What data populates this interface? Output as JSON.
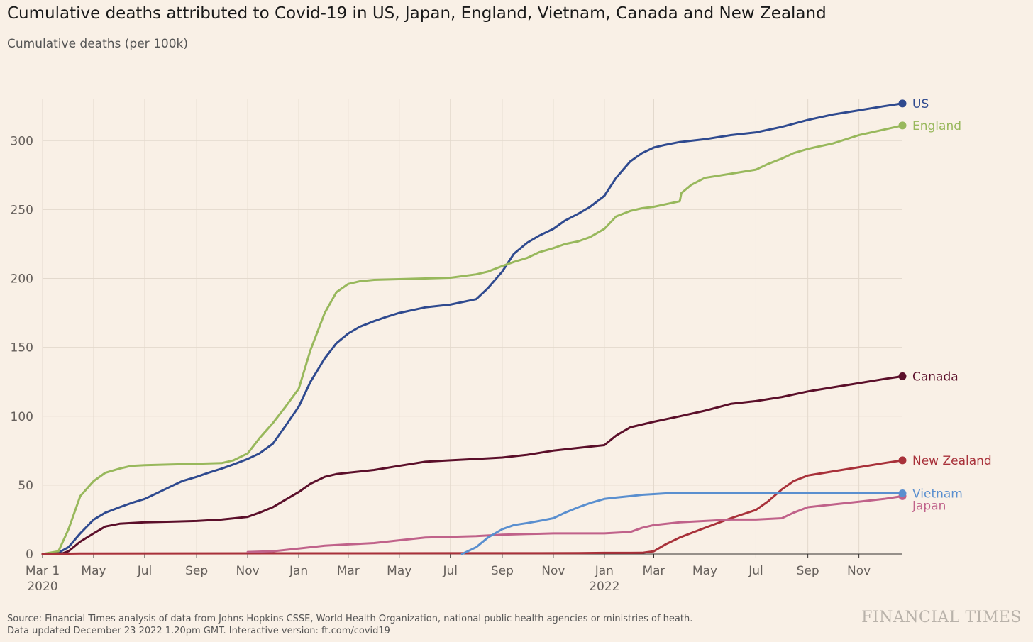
{
  "title": "Cumulative deaths attributed to Covid-19 in US, Japan, England, Vietnam, Canada and New Zealand",
  "subtitle": "Cumulative deaths (per 100k)",
  "source_line1": "Source: Financial Times analysis of data from Johns Hopkins CSSE, World Health Organization, national public health agencies or ministries of heath.",
  "source_line2": "Data updated December 23 2022 1.20pm GMT. Interactive version: ft.com/covid19",
  "brand": "FINANCIAL TIMES",
  "chart_data": {
    "type": "line",
    "title": "Cumulative deaths attributed to Covid-19 in US, Japan, England, Vietnam, Canada and New Zealand",
    "ylabel": "Cumulative deaths (per 100k)",
    "xlabel": "",
    "ylim": [
      0,
      330
    ],
    "xlim": [
      "2020-03-01",
      "2022-12-23"
    ],
    "grid": true,
    "legend": "end-of-line labels",
    "y_ticks": [
      0,
      50,
      100,
      150,
      200,
      250,
      300
    ],
    "x_ticks": [
      {
        "date": "2020-03-01",
        "label": "Mar 1",
        "sublabel": "2020"
      },
      {
        "date": "2020-05-01",
        "label": "May"
      },
      {
        "date": "2020-07-01",
        "label": "Jul"
      },
      {
        "date": "2020-09-01",
        "label": "Sep"
      },
      {
        "date": "2020-11-01",
        "label": "Nov"
      },
      {
        "date": "2021-01-01",
        "label": "Jan"
      },
      {
        "date": "2021-03-01",
        "label": "Mar"
      },
      {
        "date": "2021-05-01",
        "label": "May"
      },
      {
        "date": "2021-07-01",
        "label": "Jul"
      },
      {
        "date": "2021-09-01",
        "label": "Sep"
      },
      {
        "date": "2021-11-01",
        "label": "Nov"
      },
      {
        "date": "2022-01-01",
        "label": "Jan",
        "sublabel": "2022"
      },
      {
        "date": "2022-03-01",
        "label": "Mar"
      },
      {
        "date": "2022-05-01",
        "label": "May"
      },
      {
        "date": "2022-07-01",
        "label": "Jul"
      },
      {
        "date": "2022-09-01",
        "label": "Sep"
      },
      {
        "date": "2022-11-01",
        "label": "Nov"
      }
    ],
    "series": [
      {
        "name": "US",
        "color": "#2f4a8f",
        "points": [
          [
            "2020-03-01",
            0
          ],
          [
            "2020-03-20",
            1
          ],
          [
            "2020-04-01",
            5
          ],
          [
            "2020-04-15",
            15
          ],
          [
            "2020-05-01",
            25
          ],
          [
            "2020-05-15",
            30
          ],
          [
            "2020-06-01",
            34
          ],
          [
            "2020-06-15",
            37
          ],
          [
            "2020-07-01",
            40
          ],
          [
            "2020-07-15",
            44
          ],
          [
            "2020-08-01",
            49
          ],
          [
            "2020-08-15",
            53
          ],
          [
            "2020-09-01",
            56
          ],
          [
            "2020-09-15",
            59
          ],
          [
            "2020-10-01",
            62
          ],
          [
            "2020-10-15",
            65
          ],
          [
            "2020-11-01",
            69
          ],
          [
            "2020-11-15",
            73
          ],
          [
            "2020-12-01",
            80
          ],
          [
            "2020-12-15",
            92
          ],
          [
            "2021-01-01",
            107
          ],
          [
            "2021-01-15",
            125
          ],
          [
            "2021-02-01",
            142
          ],
          [
            "2021-02-15",
            153
          ],
          [
            "2021-03-01",
            160
          ],
          [
            "2021-03-15",
            165
          ],
          [
            "2021-04-01",
            169
          ],
          [
            "2021-04-15",
            172
          ],
          [
            "2021-05-01",
            175
          ],
          [
            "2021-06-01",
            179
          ],
          [
            "2021-07-01",
            181
          ],
          [
            "2021-08-01",
            185
          ],
          [
            "2021-08-15",
            193
          ],
          [
            "2021-09-01",
            205
          ],
          [
            "2021-09-15",
            218
          ],
          [
            "2021-10-01",
            226
          ],
          [
            "2021-10-15",
            231
          ],
          [
            "2021-11-01",
            236
          ],
          [
            "2021-11-15",
            242
          ],
          [
            "2021-12-01",
            247
          ],
          [
            "2021-12-15",
            252
          ],
          [
            "2022-01-01",
            260
          ],
          [
            "2022-01-15",
            273
          ],
          [
            "2022-02-01",
            285
          ],
          [
            "2022-02-15",
            291
          ],
          [
            "2022-03-01",
            295
          ],
          [
            "2022-03-15",
            297
          ],
          [
            "2022-04-01",
            299
          ],
          [
            "2022-05-01",
            301
          ],
          [
            "2022-06-01",
            304
          ],
          [
            "2022-07-01",
            306
          ],
          [
            "2022-08-01",
            310
          ],
          [
            "2022-09-01",
            315
          ],
          [
            "2022-10-01",
            319
          ],
          [
            "2022-11-01",
            322
          ],
          [
            "2022-12-01",
            325
          ],
          [
            "2022-12-23",
            327
          ]
        ]
      },
      {
        "name": "England",
        "color": "#98b85c",
        "points": [
          [
            "2020-03-01",
            0
          ],
          [
            "2020-03-20",
            2
          ],
          [
            "2020-04-01",
            18
          ],
          [
            "2020-04-15",
            42
          ],
          [
            "2020-05-01",
            53
          ],
          [
            "2020-05-15",
            59
          ],
          [
            "2020-06-01",
            62
          ],
          [
            "2020-06-15",
            64
          ],
          [
            "2020-07-01",
            64.5
          ],
          [
            "2020-08-01",
            65
          ],
          [
            "2020-09-01",
            65.5
          ],
          [
            "2020-10-01",
            66
          ],
          [
            "2020-10-15",
            68
          ],
          [
            "2020-11-01",
            73
          ],
          [
            "2020-11-15",
            84
          ],
          [
            "2020-12-01",
            95
          ],
          [
            "2020-12-15",
            106
          ],
          [
            "2021-01-01",
            120
          ],
          [
            "2021-01-15",
            148
          ],
          [
            "2021-02-01",
            175
          ],
          [
            "2021-02-15",
            190
          ],
          [
            "2021-03-01",
            196
          ],
          [
            "2021-03-15",
            198
          ],
          [
            "2021-04-01",
            199
          ],
          [
            "2021-05-01",
            199.5
          ],
          [
            "2021-06-01",
            200
          ],
          [
            "2021-07-01",
            200.5
          ],
          [
            "2021-08-01",
            203
          ],
          [
            "2021-08-15",
            205
          ],
          [
            "2021-09-01",
            209
          ],
          [
            "2021-09-15",
            212
          ],
          [
            "2021-10-01",
            215
          ],
          [
            "2021-10-15",
            219
          ],
          [
            "2021-11-01",
            222
          ],
          [
            "2021-11-15",
            225
          ],
          [
            "2021-12-01",
            227
          ],
          [
            "2021-12-15",
            230
          ],
          [
            "2022-01-01",
            236
          ],
          [
            "2022-01-15",
            245
          ],
          [
            "2022-02-01",
            249
          ],
          [
            "2022-02-15",
            251
          ],
          [
            "2022-03-01",
            252
          ],
          [
            "2022-04-01",
            256
          ],
          [
            "2022-04-03",
            262
          ],
          [
            "2022-04-15",
            268
          ],
          [
            "2022-05-01",
            273
          ],
          [
            "2022-06-01",
            276
          ],
          [
            "2022-07-01",
            279
          ],
          [
            "2022-07-15",
            283
          ],
          [
            "2022-08-01",
            287
          ],
          [
            "2022-08-15",
            291
          ],
          [
            "2022-09-01",
            294
          ],
          [
            "2022-10-01",
            298
          ],
          [
            "2022-11-01",
            304
          ],
          [
            "2022-12-01",
            308
          ],
          [
            "2022-12-23",
            311
          ]
        ]
      },
      {
        "name": "Canada",
        "color": "#5b0f2a",
        "points": [
          [
            "2020-03-01",
            0
          ],
          [
            "2020-03-25",
            0.5
          ],
          [
            "2020-04-01",
            2
          ],
          [
            "2020-04-15",
            9
          ],
          [
            "2020-05-01",
            15
          ],
          [
            "2020-05-15",
            20
          ],
          [
            "2020-06-01",
            22
          ],
          [
            "2020-07-01",
            23
          ],
          [
            "2020-08-01",
            23.5
          ],
          [
            "2020-09-01",
            24
          ],
          [
            "2020-10-01",
            25
          ],
          [
            "2020-11-01",
            27
          ],
          [
            "2020-11-15",
            30
          ],
          [
            "2020-12-01",
            34
          ],
          [
            "2020-12-15",
            39
          ],
          [
            "2021-01-01",
            45
          ],
          [
            "2021-01-15",
            51
          ],
          [
            "2021-02-01",
            56
          ],
          [
            "2021-02-15",
            58
          ],
          [
            "2021-03-01",
            59
          ],
          [
            "2021-04-01",
            61
          ],
          [
            "2021-05-01",
            64
          ],
          [
            "2021-06-01",
            67
          ],
          [
            "2021-07-01",
            68
          ],
          [
            "2021-08-01",
            69
          ],
          [
            "2021-09-01",
            70
          ],
          [
            "2021-10-01",
            72
          ],
          [
            "2021-11-01",
            75
          ],
          [
            "2021-12-01",
            77
          ],
          [
            "2022-01-01",
            79
          ],
          [
            "2022-01-15",
            86
          ],
          [
            "2022-02-01",
            92
          ],
          [
            "2022-03-01",
            96
          ],
          [
            "2022-04-01",
            100
          ],
          [
            "2022-05-01",
            104
          ],
          [
            "2022-06-01",
            109
          ],
          [
            "2022-07-01",
            111
          ],
          [
            "2022-08-01",
            114
          ],
          [
            "2022-09-01",
            118
          ],
          [
            "2022-10-01",
            121
          ],
          [
            "2022-11-01",
            124
          ],
          [
            "2022-12-01",
            127
          ],
          [
            "2022-12-23",
            129
          ]
        ]
      },
      {
        "name": "New Zealand",
        "color": "#a8313a",
        "points": [
          [
            "2020-03-01",
            0
          ],
          [
            "2020-04-15",
            0.4
          ],
          [
            "2021-12-01",
            0.6
          ],
          [
            "2022-01-01",
            0.8
          ],
          [
            "2022-02-15",
            0.9
          ],
          [
            "2022-03-01",
            2
          ],
          [
            "2022-03-15",
            7
          ],
          [
            "2022-04-01",
            12
          ],
          [
            "2022-05-01",
            19
          ],
          [
            "2022-06-01",
            26
          ],
          [
            "2022-07-01",
            32
          ],
          [
            "2022-07-15",
            38
          ],
          [
            "2022-08-01",
            47
          ],
          [
            "2022-08-15",
            53
          ],
          [
            "2022-09-01",
            57
          ],
          [
            "2022-10-01",
            60
          ],
          [
            "2022-11-01",
            63
          ],
          [
            "2022-12-01",
            66
          ],
          [
            "2022-12-23",
            68
          ]
        ]
      },
      {
        "name": "Japan",
        "color": "#c0628a",
        "points": [
          [
            "2020-11-01",
            1.5
          ],
          [
            "2020-12-01",
            2
          ],
          [
            "2021-01-01",
            4
          ],
          [
            "2021-02-01",
            6
          ],
          [
            "2021-03-01",
            7
          ],
          [
            "2021-04-01",
            8
          ],
          [
            "2021-05-01",
            10
          ],
          [
            "2021-06-01",
            12
          ],
          [
            "2021-07-01",
            12.5
          ],
          [
            "2021-08-01",
            13
          ],
          [
            "2021-09-01",
            14
          ],
          [
            "2021-10-01",
            14.5
          ],
          [
            "2021-11-01",
            15
          ],
          [
            "2021-12-01",
            15
          ],
          [
            "2022-01-01",
            15
          ],
          [
            "2022-02-01",
            16
          ],
          [
            "2022-02-15",
            19
          ],
          [
            "2022-03-01",
            21
          ],
          [
            "2022-04-01",
            23
          ],
          [
            "2022-05-01",
            24
          ],
          [
            "2022-06-01",
            25
          ],
          [
            "2022-07-01",
            25
          ],
          [
            "2022-08-01",
            26
          ],
          [
            "2022-08-15",
            30
          ],
          [
            "2022-09-01",
            34
          ],
          [
            "2022-10-01",
            36
          ],
          [
            "2022-11-01",
            38
          ],
          [
            "2022-12-01",
            40
          ],
          [
            "2022-12-23",
            42
          ]
        ]
      },
      {
        "name": "Vietnam",
        "color": "#5a8fcf",
        "points": [
          [
            "2021-07-15",
            0
          ],
          [
            "2021-08-01",
            5
          ],
          [
            "2021-08-15",
            12
          ],
          [
            "2021-09-01",
            18
          ],
          [
            "2021-09-15",
            21
          ],
          [
            "2021-10-01",
            22.5
          ],
          [
            "2021-10-15",
            24
          ],
          [
            "2021-11-01",
            26
          ],
          [
            "2021-11-15",
            30
          ],
          [
            "2021-12-01",
            34
          ],
          [
            "2021-12-15",
            37
          ],
          [
            "2022-01-01",
            40
          ],
          [
            "2022-01-15",
            41
          ],
          [
            "2022-02-01",
            42
          ],
          [
            "2022-02-15",
            43
          ],
          [
            "2022-03-01",
            43.5
          ],
          [
            "2022-03-15",
            44
          ],
          [
            "2022-12-23",
            44
          ]
        ]
      }
    ]
  }
}
